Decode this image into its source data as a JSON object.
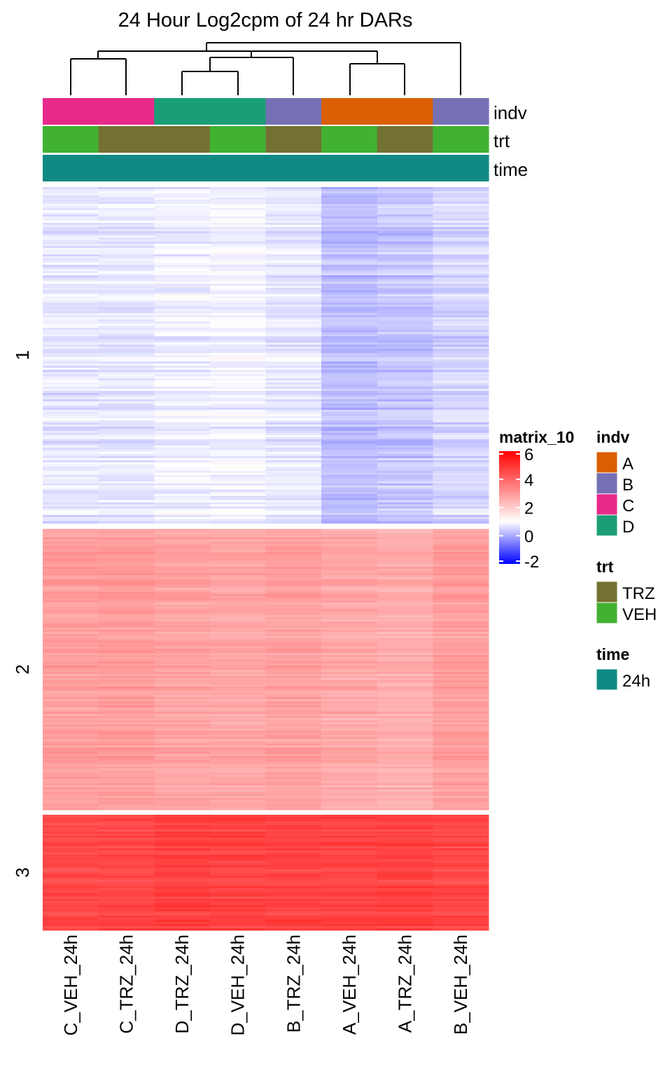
{
  "chart_data": {
    "type": "heatmap",
    "title": "24 Hour Log2cpm of 24 hr DARs",
    "columns": [
      "C_VEH_24h",
      "C_TRZ_24h",
      "D_TRZ_24h",
      "D_VEH_24h",
      "B_TRZ_24h",
      "A_VEH_24h",
      "A_TRZ_24h",
      "B_VEH_24h"
    ],
    "row_clusters": [
      {
        "label": "1",
        "approx_values": [
          0.7,
          0.7,
          0.8,
          0.85,
          0.7,
          0.2,
          0.3,
          0.5
        ]
      },
      {
        "label": "2",
        "approx_values": [
          2.9,
          2.95,
          2.8,
          2.75,
          2.85,
          2.7,
          2.6,
          2.9
        ]
      },
      {
        "label": "3",
        "approx_values": [
          4.6,
          4.6,
          4.75,
          4.7,
          4.7,
          4.7,
          4.75,
          4.6
        ]
      }
    ],
    "annotations": [
      {
        "name": "indv",
        "values": [
          "C",
          "C",
          "D",
          "D",
          "B",
          "A",
          "A",
          "B"
        ]
      },
      {
        "name": "trt",
        "values": [
          "VEH",
          "TRZ",
          "TRZ",
          "VEH",
          "TRZ",
          "VEH",
          "TRZ",
          "VEH"
        ]
      },
      {
        "name": "time",
        "values": [
          "24h",
          "24h",
          "24h",
          "24h",
          "24h",
          "24h",
          "24h",
          "24h"
        ]
      }
    ],
    "color_scale": {
      "name": "matrix_10",
      "ticks": [
        6,
        4,
        2,
        0,
        -2
      ],
      "range": [
        -2,
        6
      ],
      "stops": [
        {
          "value": -2,
          "color": "#0000ff"
        },
        {
          "value": 1,
          "color": "#ffffff"
        },
        {
          "value": 6,
          "color": "#ff0000"
        }
      ]
    },
    "legends": [
      {
        "title": "indv",
        "items": [
          {
            "label": "A",
            "color": "#d95f02"
          },
          {
            "label": "B",
            "color": "#7570b3"
          },
          {
            "label": "C",
            "color": "#e7298a"
          },
          {
            "label": "D",
            "color": "#1b9e77"
          }
        ]
      },
      {
        "title": "trt",
        "items": [
          {
            "label": "TRZ",
            "color": "#737132"
          },
          {
            "label": "VEH",
            "color": "#41b132"
          }
        ]
      },
      {
        "title": "time",
        "items": [
          {
            "label": "24h",
            "color": "#128a84"
          }
        ]
      }
    ],
    "dendrogram": "((C_VEH_24h,C_TRZ_24h),(((D_TRZ_24h,D_VEH_24h),B_TRZ_24h),(A_VEH_24h,A_TRZ_24h)),B_VEH_24h)"
  }
}
